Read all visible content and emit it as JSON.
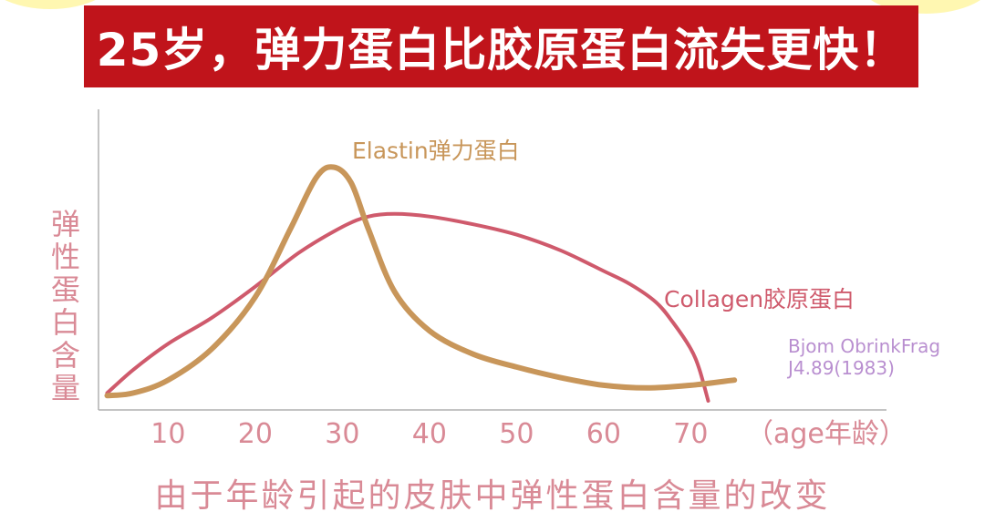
{
  "banner": {
    "title": "25岁，弹力蛋白比胶原蛋白流失更快！"
  },
  "caption": "由于年龄引起的皮肤中弹性蛋白含量的改变",
  "source": {
    "line1": "Bjom ObrinkFrag",
    "line2": "J4.89(1983)"
  },
  "colors": {
    "banner_bg": "#c0141b",
    "elastin": "#c8965a",
    "collagen": "#cf5a6c",
    "axis_text": "#d98a96",
    "source_text": "#b98fd0",
    "axis_line": "#b0b0b0"
  },
  "chart_data": {
    "type": "line",
    "title": "",
    "xlabel": "（age年龄）",
    "ylabel": "弹性蛋白含量",
    "xticks": [
      10,
      20,
      30,
      40,
      50,
      60,
      70
    ],
    "xlim": [
      2,
      73
    ],
    "ylim": [
      0,
      100
    ],
    "series": [
      {
        "name": "Elastin弹力蛋白",
        "x": [
          3,
          6,
          10,
          15,
          20,
          24,
          27,
          29,
          31,
          33,
          36,
          40,
          45,
          50,
          55,
          60,
          65,
          70,
          75
        ],
        "y": [
          2,
          3,
          8,
          20,
          40,
          66,
          86,
          90,
          84,
          66,
          42,
          27,
          18,
          13,
          9,
          6,
          5,
          6,
          8
        ]
      },
      {
        "name": "Collagen胶原蛋白",
        "x": [
          3,
          6,
          10,
          15,
          20,
          25,
          30,
          33,
          36,
          40,
          45,
          50,
          55,
          60,
          63,
          66,
          68,
          70,
          71,
          72
        ],
        "y": [
          3,
          12,
          22,
          32,
          44,
          57,
          67,
          71,
          72,
          71,
          68,
          64,
          58,
          50,
          45,
          38,
          30,
          20,
          12,
          0
        ]
      }
    ]
  }
}
